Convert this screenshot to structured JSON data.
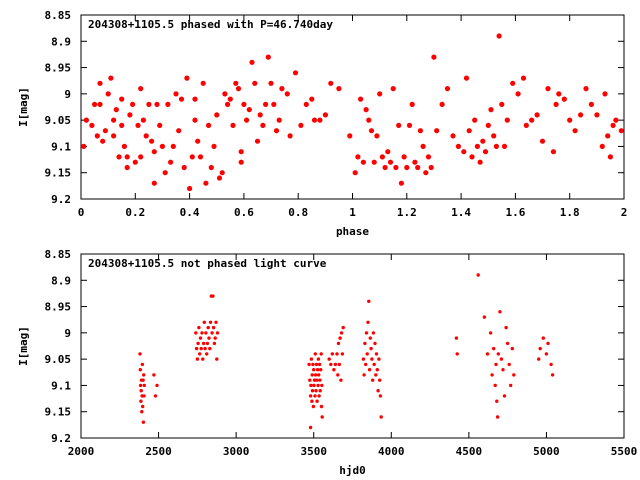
{
  "chart_data": [
    {
      "type": "scatter",
      "title": "204308+1105.5 phased with P=46.740day",
      "xlabel": "phase",
      "ylabel": "I[mag]",
      "xlim": [
        0,
        2
      ],
      "ylim": [
        9.2,
        8.85
      ],
      "y_inverted": true,
      "x_ticks": [
        "0",
        "0.2",
        "0.4",
        "0.6",
        "0.8",
        "1",
        "1.2",
        "1.4",
        "1.6",
        "1.8",
        "2"
      ],
      "y_ticks": [
        "8.85",
        "8.9",
        "8.95",
        "9",
        "9.05",
        "9.1",
        "9.15",
        "9.2"
      ],
      "grid": false,
      "marker_color": "#ff0000",
      "points": [
        [
          0.01,
          9.1
        ],
        [
          0.02,
          9.05
        ],
        [
          0.04,
          9.06
        ],
        [
          0.05,
          9.02
        ],
        [
          0.06,
          9.08
        ],
        [
          0.07,
          8.98
        ],
        [
          0.07,
          9.02
        ],
        [
          0.08,
          9.09
        ],
        [
          0.09,
          9.07
        ],
        [
          0.1,
          9.0
        ],
        [
          0.11,
          8.97
        ],
        [
          0.12,
          9.05
        ],
        [
          0.12,
          9.08
        ],
        [
          0.13,
          9.03
        ],
        [
          0.14,
          9.12
        ],
        [
          0.15,
          9.06
        ],
        [
          0.15,
          9.01
        ],
        [
          0.16,
          9.1
        ],
        [
          0.17,
          9.12
        ],
        [
          0.17,
          9.14
        ],
        [
          0.18,
          9.04
        ],
        [
          0.19,
          9.02
        ],
        [
          0.2,
          9.13
        ],
        [
          0.21,
          9.06
        ],
        [
          0.22,
          8.99
        ],
        [
          0.22,
          9.12
        ],
        [
          0.23,
          9.05
        ],
        [
          0.24,
          9.08
        ],
        [
          0.25,
          9.02
        ],
        [
          0.26,
          9.09
        ],
        [
          0.27,
          9.17
        ],
        [
          0.27,
          9.11
        ],
        [
          0.28,
          9.02
        ],
        [
          0.29,
          9.06
        ],
        [
          0.3,
          9.1
        ],
        [
          0.31,
          9.15
        ],
        [
          0.32,
          9.02
        ],
        [
          0.33,
          9.13
        ],
        [
          0.34,
          9.1
        ],
        [
          0.35,
          9.0
        ],
        [
          0.36,
          9.07
        ],
        [
          0.37,
          9.01
        ],
        [
          0.38,
          9.14
        ],
        [
          0.39,
          8.97
        ],
        [
          0.4,
          9.18
        ],
        [
          0.41,
          9.12
        ],
        [
          0.42,
          9.05
        ],
        [
          0.42,
          9.01
        ],
        [
          0.43,
          9.09
        ],
        [
          0.44,
          9.12
        ],
        [
          0.45,
          8.98
        ],
        [
          0.46,
          9.17
        ],
        [
          0.47,
          9.06
        ],
        [
          0.48,
          9.14
        ],
        [
          0.49,
          9.1
        ],
        [
          0.5,
          9.04
        ],
        [
          0.51,
          9.16
        ],
        [
          0.52,
          9.15
        ],
        [
          0.53,
          9.0
        ],
        [
          0.54,
          9.02
        ],
        [
          0.55,
          9.01
        ],
        [
          0.56,
          9.06
        ],
        [
          0.57,
          8.98
        ],
        [
          0.58,
          8.99
        ],
        [
          0.59,
          9.11
        ],
        [
          0.59,
          9.13
        ],
        [
          0.6,
          9.02
        ],
        [
          0.61,
          9.05
        ],
        [
          0.62,
          9.03
        ],
        [
          0.63,
          8.94
        ],
        [
          0.64,
          8.98
        ],
        [
          0.65,
          9.09
        ],
        [
          0.66,
          9.04
        ],
        [
          0.67,
          9.06
        ],
        [
          0.68,
          9.02
        ],
        [
          0.69,
          8.93
        ],
        [
          0.7,
          8.98
        ],
        [
          0.71,
          9.02
        ],
        [
          0.72,
          9.07
        ],
        [
          0.73,
          9.05
        ],
        [
          0.74,
          8.99
        ],
        [
          0.76,
          9.0
        ],
        [
          0.77,
          9.08
        ],
        [
          0.79,
          8.96
        ],
        [
          0.81,
          9.06
        ],
        [
          0.83,
          9.02
        ],
        [
          0.85,
          9.01
        ],
        [
          0.86,
          9.05
        ],
        [
          0.88,
          9.05
        ],
        [
          0.9,
          9.04
        ],
        [
          0.92,
          8.98
        ],
        [
          0.95,
          8.99
        ],
        [
          0.99,
          9.08
        ],
        [
          1.01,
          9.15
        ],
        [
          1.02,
          9.12
        ],
        [
          1.03,
          9.01
        ],
        [
          1.04,
          9.13
        ],
        [
          1.05,
          9.03
        ],
        [
          1.06,
          9.05
        ],
        [
          1.07,
          9.07
        ],
        [
          1.08,
          9.13
        ],
        [
          1.09,
          9.08
        ],
        [
          1.1,
          9.0
        ],
        [
          1.11,
          9.12
        ],
        [
          1.12,
          9.14
        ],
        [
          1.13,
          9.11
        ],
        [
          1.14,
          9.13
        ],
        [
          1.15,
          8.99
        ],
        [
          1.16,
          9.14
        ],
        [
          1.17,
          9.06
        ],
        [
          1.18,
          9.17
        ],
        [
          1.19,
          9.12
        ],
        [
          1.2,
          9.14
        ],
        [
          1.21,
          9.06
        ],
        [
          1.22,
          9.02
        ],
        [
          1.23,
          9.13
        ],
        [
          1.24,
          9.14
        ],
        [
          1.25,
          9.07
        ],
        [
          1.26,
          9.1
        ],
        [
          1.27,
          9.15
        ],
        [
          1.28,
          9.12
        ],
        [
          1.29,
          9.14
        ],
        [
          1.3,
          8.93
        ],
        [
          1.31,
          9.07
        ],
        [
          1.33,
          9.02
        ],
        [
          1.35,
          8.99
        ],
        [
          1.37,
          9.08
        ],
        [
          1.39,
          9.1
        ],
        [
          1.41,
          9.11
        ],
        [
          1.42,
          8.97
        ],
        [
          1.43,
          9.07
        ],
        [
          1.44,
          9.12
        ],
        [
          1.45,
          9.05
        ],
        [
          1.46,
          9.1
        ],
        [
          1.47,
          9.13
        ],
        [
          1.48,
          9.09
        ],
        [
          1.49,
          9.11
        ],
        [
          1.5,
          9.06
        ],
        [
          1.51,
          9.03
        ],
        [
          1.52,
          9.08
        ],
        [
          1.53,
          9.1
        ],
        [
          1.54,
          8.89
        ],
        [
          1.55,
          9.02
        ],
        [
          1.56,
          9.1
        ],
        [
          1.57,
          9.05
        ],
        [
          1.59,
          8.98
        ],
        [
          1.61,
          9.0
        ],
        [
          1.63,
          8.97
        ],
        [
          1.64,
          9.06
        ],
        [
          1.66,
          9.05
        ],
        [
          1.68,
          9.04
        ],
        [
          1.7,
          9.09
        ],
        [
          1.72,
          8.99
        ],
        [
          1.74,
          9.11
        ],
        [
          1.75,
          9.02
        ],
        [
          1.76,
          9.0
        ],
        [
          1.78,
          9.01
        ],
        [
          1.8,
          9.05
        ],
        [
          1.82,
          9.07
        ],
        [
          1.84,
          9.04
        ],
        [
          1.86,
          8.99
        ],
        [
          1.88,
          9.02
        ],
        [
          1.9,
          9.04
        ],
        [
          1.92,
          9.1
        ],
        [
          1.93,
          9.0
        ],
        [
          1.94,
          9.08
        ],
        [
          1.95,
          9.12
        ],
        [
          1.96,
          9.06
        ],
        [
          1.97,
          9.05
        ],
        [
          1.99,
          9.07
        ]
      ]
    },
    {
      "type": "scatter",
      "title": "204308+1105.5 not phased light curve",
      "xlabel": "hjd0",
      "ylabel": "I[mag]",
      "xlim": [
        2000,
        5500
      ],
      "ylim": [
        9.2,
        8.85
      ],
      "y_inverted": true,
      "x_ticks": [
        "2000",
        "2500",
        "3000",
        "3500",
        "4000",
        "4500",
        "5000",
        "5500"
      ],
      "y_ticks": [
        "8.85",
        "8.9",
        "8.95",
        "9",
        "9.05",
        "9.1",
        "9.15",
        "9.2"
      ],
      "grid": false,
      "marker_color": "#ff0000",
      "points": [
        [
          2380,
          9.04
        ],
        [
          2382,
          9.07
        ],
        [
          2384,
          9.1
        ],
        [
          2386,
          9.13
        ],
        [
          2388,
          9.11
        ],
        [
          2390,
          9.09
        ],
        [
          2392,
          9.15
        ],
        [
          2394,
          9.12
        ],
        [
          2396,
          9.06
        ],
        [
          2398,
          9.14
        ],
        [
          2400,
          9.09
        ],
        [
          2402,
          9.17
        ],
        [
          2404,
          9.08
        ],
        [
          2406,
          9.12
        ],
        [
          2408,
          9.1
        ],
        [
          2470,
          9.08
        ],
        [
          2480,
          9.12
        ],
        [
          2490,
          9.1
        ],
        [
          2740,
          9.0
        ],
        [
          2745,
          9.03
        ],
        [
          2750,
          9.05
        ],
        [
          2755,
          9.02
        ],
        [
          2760,
          8.99
        ],
        [
          2765,
          9.04
        ],
        [
          2770,
          9.01
        ],
        [
          2775,
          9.03
        ],
        [
          2780,
          9.0
        ],
        [
          2785,
          9.05
        ],
        [
          2790,
          9.02
        ],
        [
          2795,
          8.98
        ],
        [
          2800,
          9.03
        ],
        [
          2805,
          9.0
        ],
        [
          2810,
          9.04
        ],
        [
          2815,
          9.02
        ],
        [
          2820,
          8.99
        ],
        [
          2825,
          9.01
        ],
        [
          2830,
          9.03
        ],
        [
          2835,
          8.98
        ],
        [
          2840,
          8.93
        ],
        [
          2845,
          9.0
        ],
        [
          2850,
          8.93
        ],
        [
          2855,
          8.99
        ],
        [
          2860,
          9.02
        ],
        [
          2865,
          9.01
        ],
        [
          2870,
          8.98
        ],
        [
          2875,
          9.05
        ],
        [
          2880,
          9.0
        ],
        [
          3470,
          9.06
        ],
        [
          3475,
          9.09
        ],
        [
          3480,
          9.12
        ],
        [
          3482,
          9.1
        ],
        [
          3485,
          9.05
        ],
        [
          3488,
          9.13
        ],
        [
          3490,
          9.08
        ],
        [
          3492,
          9.11
        ],
        [
          3495,
          9.06
        ],
        [
          3498,
          9.14
        ],
        [
          3500,
          9.07
        ],
        [
          3502,
          9.1
        ],
        [
          3505,
          9.09
        ],
        [
          3508,
          9.12
        ],
        [
          3510,
          9.04
        ],
        [
          3512,
          9.08
        ],
        [
          3515,
          9.11
        ],
        [
          3518,
          9.06
        ],
        [
          3520,
          9.09
        ],
        [
          3522,
          9.13
        ],
        [
          3525,
          9.07
        ],
        [
          3528,
          9.1
        ],
        [
          3530,
          9.05
        ],
        [
          3532,
          9.08
        ],
        [
          3535,
          9.12
        ],
        [
          3538,
          9.06
        ],
        [
          3540,
          9.09
        ],
        [
          3542,
          9.11
        ],
        [
          3545,
          9.07
        ],
        [
          3548,
          9.04
        ],
        [
          3550,
          9.14
        ],
        [
          3552,
          9.1
        ],
        [
          3555,
          9.16
        ],
        [
          3480,
          9.18
        ],
        [
          3600,
          9.05
        ],
        [
          3610,
          9.06
        ],
        [
          3620,
          9.04
        ],
        [
          3630,
          9.07
        ],
        [
          3640,
          9.06
        ],
        [
          3650,
          9.04
        ],
        [
          3655,
          9.08
        ],
        [
          3660,
          9.02
        ],
        [
          3665,
          9.06
        ],
        [
          3670,
          9.01
        ],
        [
          3675,
          9.09
        ],
        [
          3680,
          9.0
        ],
        [
          3685,
          9.04
        ],
        [
          3690,
          8.99
        ],
        [
          3820,
          9.05
        ],
        [
          3825,
          9.08
        ],
        [
          3830,
          9.02
        ],
        [
          3835,
          9.06
        ],
        [
          3840,
          9.0
        ],
        [
          3845,
          9.04
        ],
        [
          3850,
          8.98
        ],
        [
          3855,
          8.94
        ],
        [
          3860,
          9.07
        ],
        [
          3865,
          9.01
        ],
        [
          3870,
          9.03
        ],
        [
          3875,
          9.05
        ],
        [
          3880,
          9.09
        ],
        [
          3885,
          9.0
        ],
        [
          3890,
          9.06
        ],
        [
          3895,
          9.02
        ],
        [
          3900,
          9.08
        ],
        [
          3905,
          9.04
        ],
        [
          3910,
          9.07
        ],
        [
          3915,
          9.11
        ],
        [
          3920,
          9.05
        ],
        [
          3925,
          9.09
        ],
        [
          3930,
          9.12
        ],
        [
          3935,
          9.16
        ],
        [
          4420,
          9.01
        ],
        [
          4425,
          9.04
        ],
        [
          4560,
          8.89
        ],
        [
          4600,
          8.97
        ],
        [
          4620,
          9.04
        ],
        [
          4640,
          9.0
        ],
        [
          4650,
          9.08
        ],
        [
          4660,
          9.03
        ],
        [
          4670,
          9.1
        ],
        [
          4675,
          9.06
        ],
        [
          4680,
          9.13
        ],
        [
          4685,
          9.16
        ],
        [
          4690,
          9.04
        ],
        [
          4700,
          8.96
        ],
        [
          4710,
          9.05
        ],
        [
          4720,
          9.07
        ],
        [
          4730,
          9.12
        ],
        [
          4740,
          8.99
        ],
        [
          4750,
          9.02
        ],
        [
          4760,
          9.06
        ],
        [
          4770,
          9.1
        ],
        [
          4780,
          9.03
        ],
        [
          4790,
          9.08
        ],
        [
          4950,
          9.05
        ],
        [
          4960,
          9.03
        ],
        [
          4980,
          9.01
        ],
        [
          5000,
          9.04
        ],
        [
          5010,
          9.02
        ],
        [
          5030,
          9.06
        ],
        [
          5040,
          9.08
        ]
      ]
    }
  ]
}
